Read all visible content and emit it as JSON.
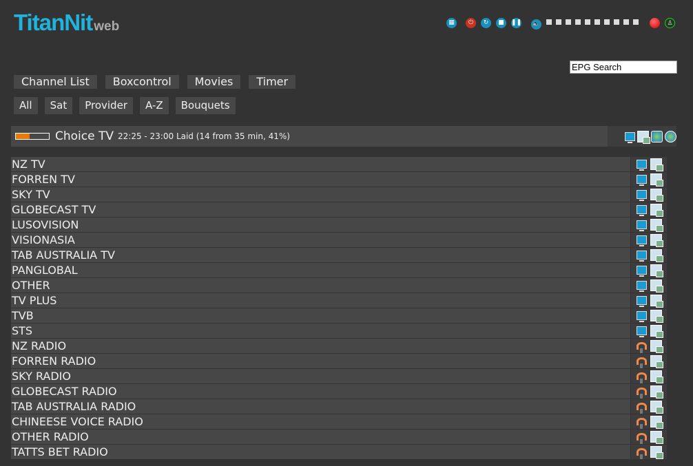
{
  "logo": {
    "title": "TitanNit",
    "suffix": "web"
  },
  "controls": {
    "icons": [
      "remote-icon",
      "power-icon",
      "restart-icon",
      "stop-icon",
      "pause-icon",
      "volume-icon"
    ],
    "volume_level": 0,
    "volume_steps": 10,
    "record": "record-icon",
    "signal": "signal-icon"
  },
  "search": {
    "placeholder": "EPG Search",
    "value": "EPG Search"
  },
  "nav": [
    "Channel List",
    "Boxcontrol",
    "Movies",
    "Timer"
  ],
  "subnav": [
    "All",
    "Sat",
    "Provider",
    "A-Z",
    "Bouquets"
  ],
  "current": {
    "channel": "Choice TV",
    "details": "22:25 - 23:00 Laid (14 from 35 min, 41%)",
    "progress_percent": 41,
    "colors": {
      "progress": "#e87a0c"
    }
  },
  "bouquets": [
    {
      "name": "NZ TV",
      "type": "tv"
    },
    {
      "name": "FORREN TV",
      "type": "tv"
    },
    {
      "name": "SKY TV",
      "type": "tv"
    },
    {
      "name": "GLOBECAST TV",
      "type": "tv"
    },
    {
      "name": "LUSOVISION",
      "type": "tv"
    },
    {
      "name": "VISIONASIA",
      "type": "tv"
    },
    {
      "name": "TAB AUSTRALIA TV",
      "type": "tv"
    },
    {
      "name": "PANGLOBAL",
      "type": "tv"
    },
    {
      "name": "OTHER",
      "type": "tv"
    },
    {
      "name": "TV PLUS",
      "type": "tv"
    },
    {
      "name": "TVB",
      "type": "tv"
    },
    {
      "name": "STS",
      "type": "tv"
    },
    {
      "name": "NZ RADIO",
      "type": "radio"
    },
    {
      "name": "FORREN RADIO",
      "type": "radio"
    },
    {
      "name": "SKY RADIO",
      "type": "radio"
    },
    {
      "name": "GLOBECAST RADIO",
      "type": "radio"
    },
    {
      "name": "TAB AUSTRALIA RADIO",
      "type": "radio"
    },
    {
      "name": "CHINEESE VOICE RADIO",
      "type": "radio"
    },
    {
      "name": "OTHER RADIO",
      "type": "radio"
    },
    {
      "name": "TATTS BET RADIO",
      "type": "radio"
    }
  ]
}
